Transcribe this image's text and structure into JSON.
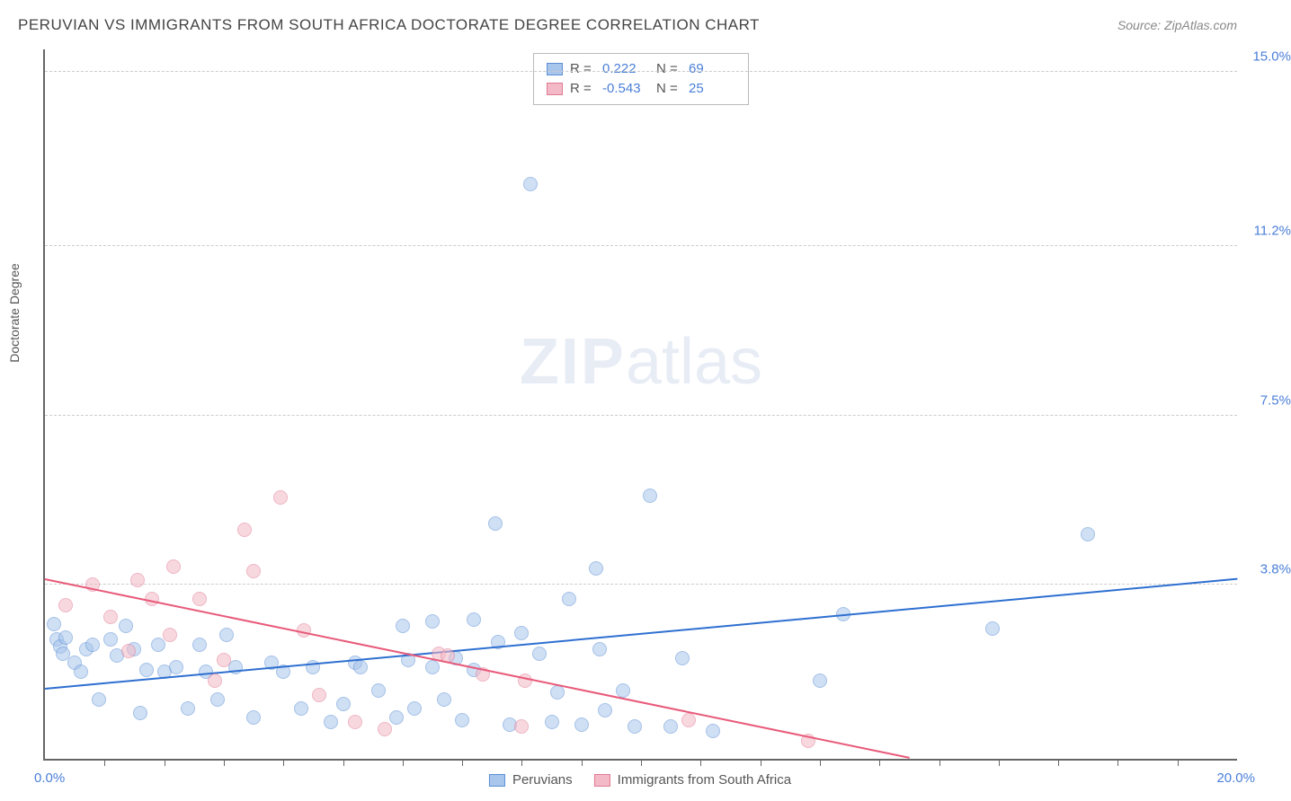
{
  "header": {
    "title": "PERUVIAN VS IMMIGRANTS FROM SOUTH AFRICA DOCTORATE DEGREE CORRELATION CHART",
    "source": "Source: ZipAtlas.com"
  },
  "chart": {
    "type": "scatter",
    "xlim": [
      0,
      20
    ],
    "ylim": [
      0,
      15.5
    ],
    "x_tick_step": 1.0,
    "x_label_min": "0.0%",
    "x_label_max": "20.0%",
    "y_gridlines": [
      {
        "value": 3.8,
        "label": "3.8%"
      },
      {
        "value": 7.5,
        "label": "7.5%"
      },
      {
        "value": 11.2,
        "label": "11.2%"
      },
      {
        "value": 15.0,
        "label": "15.0%"
      }
    ],
    "y_axis_title": "Doctorate Degree",
    "background_color": "#ffffff",
    "grid_color": "#cccccc",
    "axis_color": "#666666",
    "marker_radius": 8,
    "marker_opacity": 0.55,
    "series": [
      {
        "name": "Peruvians",
        "fill_color": "#a8c5ec",
        "stroke_color": "#5b8fd4",
        "R": "0.222",
        "N": "69",
        "trend": {
          "x1": 0,
          "y1": 1.55,
          "x2": 20,
          "y2": 3.95,
          "color": "#2e6fd0",
          "width": 2
        },
        "points": [
          {
            "x": 0.2,
            "y": 2.6
          },
          {
            "x": 0.25,
            "y": 2.45
          },
          {
            "x": 0.3,
            "y": 2.3
          },
          {
            "x": 0.35,
            "y": 2.65
          },
          {
            "x": 0.5,
            "y": 2.1
          },
          {
            "x": 0.6,
            "y": 1.9
          },
          {
            "x": 0.7,
            "y": 2.4
          },
          {
            "x": 0.8,
            "y": 2.5
          },
          {
            "x": 0.9,
            "y": 1.3
          },
          {
            "x": 1.1,
            "y": 2.6
          },
          {
            "x": 1.2,
            "y": 2.25
          },
          {
            "x": 1.5,
            "y": 2.4
          },
          {
            "x": 1.6,
            "y": 1.0
          },
          {
            "x": 1.7,
            "y": 1.95
          },
          {
            "x": 1.9,
            "y": 2.5
          },
          {
            "x": 2.0,
            "y": 1.9
          },
          {
            "x": 2.2,
            "y": 2.0
          },
          {
            "x": 2.4,
            "y": 1.1
          },
          {
            "x": 2.6,
            "y": 2.5
          },
          {
            "x": 2.7,
            "y": 1.9
          },
          {
            "x": 2.9,
            "y": 1.3
          },
          {
            "x": 3.2,
            "y": 2.0
          },
          {
            "x": 3.5,
            "y": 0.9
          },
          {
            "x": 3.8,
            "y": 2.1
          },
          {
            "x": 4.0,
            "y": 1.9
          },
          {
            "x": 4.3,
            "y": 1.1
          },
          {
            "x": 4.5,
            "y": 2.0
          },
          {
            "x": 4.8,
            "y": 0.8
          },
          {
            "x": 5.0,
            "y": 1.2
          },
          {
            "x": 5.2,
            "y": 2.1
          },
          {
            "x": 5.3,
            "y": 2.0
          },
          {
            "x": 5.6,
            "y": 1.5
          },
          {
            "x": 5.9,
            "y": 0.9
          },
          {
            "x": 6.0,
            "y": 2.9
          },
          {
            "x": 6.1,
            "y": 2.15
          },
          {
            "x": 6.2,
            "y": 1.1
          },
          {
            "x": 6.5,
            "y": 3.0
          },
          {
            "x": 6.5,
            "y": 2.0
          },
          {
            "x": 6.7,
            "y": 1.3
          },
          {
            "x": 6.9,
            "y": 2.2
          },
          {
            "x": 7.0,
            "y": 0.85
          },
          {
            "x": 7.2,
            "y": 3.05
          },
          {
            "x": 7.2,
            "y": 1.95
          },
          {
            "x": 7.55,
            "y": 5.15
          },
          {
            "x": 7.6,
            "y": 2.55
          },
          {
            "x": 7.8,
            "y": 0.75
          },
          {
            "x": 8.0,
            "y": 2.75
          },
          {
            "x": 8.15,
            "y": 12.55
          },
          {
            "x": 8.3,
            "y": 2.3
          },
          {
            "x": 8.5,
            "y": 0.8
          },
          {
            "x": 8.6,
            "y": 1.45
          },
          {
            "x": 8.8,
            "y": 3.5
          },
          {
            "x": 9.0,
            "y": 0.75
          },
          {
            "x": 9.25,
            "y": 4.15
          },
          {
            "x": 9.3,
            "y": 2.4
          },
          {
            "x": 9.4,
            "y": 1.05
          },
          {
            "x": 9.7,
            "y": 1.5
          },
          {
            "x": 9.9,
            "y": 0.7
          },
          {
            "x": 10.15,
            "y": 5.75
          },
          {
            "x": 10.5,
            "y": 0.7
          },
          {
            "x": 10.7,
            "y": 2.2
          },
          {
            "x": 11.2,
            "y": 0.6
          },
          {
            "x": 13.0,
            "y": 1.7
          },
          {
            "x": 13.4,
            "y": 3.15
          },
          {
            "x": 15.9,
            "y": 2.85
          },
          {
            "x": 17.5,
            "y": 4.9
          },
          {
            "x": 1.35,
            "y": 2.9
          },
          {
            "x": 3.05,
            "y": 2.7
          },
          {
            "x": 0.15,
            "y": 2.95
          }
        ]
      },
      {
        "name": "Immigrants from South Africa",
        "fill_color": "#f4b9c6",
        "stroke_color": "#e07a94",
        "R": "-0.543",
        "N": "25",
        "trend": {
          "x1": 0,
          "y1": 3.95,
          "x2": 14.5,
          "y2": 0.05,
          "color": "#e85a7a",
          "width": 2
        },
        "points": [
          {
            "x": 0.35,
            "y": 3.35
          },
          {
            "x": 0.8,
            "y": 3.8
          },
          {
            "x": 1.1,
            "y": 3.1
          },
          {
            "x": 1.4,
            "y": 2.35
          },
          {
            "x": 1.55,
            "y": 3.9
          },
          {
            "x": 1.8,
            "y": 3.5
          },
          {
            "x": 2.1,
            "y": 2.7
          },
          {
            "x": 2.15,
            "y": 4.2
          },
          {
            "x": 2.6,
            "y": 3.5
          },
          {
            "x": 2.85,
            "y": 1.7
          },
          {
            "x": 3.0,
            "y": 2.15
          },
          {
            "x": 3.35,
            "y": 5.0
          },
          {
            "x": 3.5,
            "y": 4.1
          },
          {
            "x": 3.95,
            "y": 5.7
          },
          {
            "x": 4.35,
            "y": 2.8
          },
          {
            "x": 4.6,
            "y": 1.4
          },
          {
            "x": 5.2,
            "y": 0.8
          },
          {
            "x": 5.7,
            "y": 0.65
          },
          {
            "x": 6.6,
            "y": 2.3
          },
          {
            "x": 6.75,
            "y": 2.25
          },
          {
            "x": 7.35,
            "y": 1.85
          },
          {
            "x": 8.05,
            "y": 1.7
          },
          {
            "x": 8.0,
            "y": 0.7
          },
          {
            "x": 10.8,
            "y": 0.85
          },
          {
            "x": 12.8,
            "y": 0.4
          }
        ]
      }
    ],
    "legend_bottom": [
      {
        "label": "Peruvians",
        "fill": "#a8c5ec",
        "stroke": "#5b8fd4"
      },
      {
        "label": "Immigrants from South Africa",
        "fill": "#f4b9c6",
        "stroke": "#e07a94"
      }
    ],
    "watermark": {
      "bold": "ZIP",
      "rest": "atlas"
    }
  }
}
